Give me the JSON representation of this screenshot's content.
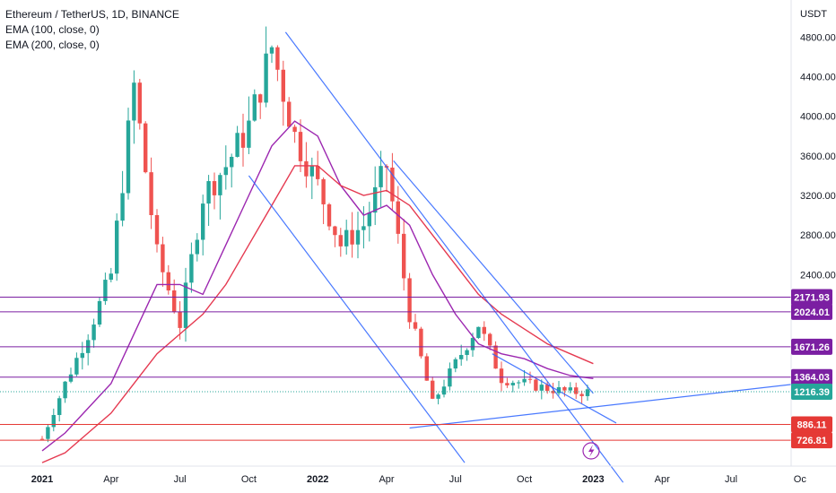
{
  "legend": {
    "symbol": "Ethereum / TetherUS, 1D, BINANCE",
    "ema100": "EMA (100, close, 0)",
    "ema200": "EMA (200, close, 0)"
  },
  "price_axis": {
    "currency": "USDT",
    "ticks": [
      "4800.00",
      "4400.00",
      "4000.00",
      "3600.00",
      "3200.00",
      "2800.00",
      "2400.00"
    ]
  },
  "time_axis": {
    "ticks": [
      "2021",
      "Apr",
      "Jul",
      "Oct",
      "2022",
      "Apr",
      "Jul",
      "Oct",
      "2023",
      "Apr",
      "Jul",
      "Oc"
    ]
  },
  "levels": [
    {
      "value": 2171.93,
      "label": "2171.93",
      "color": "#7b1fa2"
    },
    {
      "value": 2024.01,
      "label": "2024.01",
      "color": "#7b1fa2"
    },
    {
      "value": 1671.26,
      "label": "1671.26",
      "color": "#7b1fa2"
    },
    {
      "value": 1364.03,
      "label": "1364.03",
      "color": "#7b1fa2"
    },
    {
      "value": 1216.39,
      "label": "1216.39",
      "color": "#26a69a"
    },
    {
      "value": 886.11,
      "label": "886.11",
      "color": "#e53935"
    },
    {
      "value": 726.81,
      "label": "726.81",
      "color": "#e53935"
    }
  ],
  "colors": {
    "up": "#26a69a",
    "down": "#ef5350",
    "ema100": "#9c27b0",
    "ema200": "#e53950",
    "trendline": "#2962ff",
    "event_marker": "#9c27b0"
  },
  "chart_data": {
    "type": "line",
    "title": "Ethereum / TetherUS, 1D, BINANCE",
    "xlabel": "",
    "ylabel": "USDT",
    "x": [
      "2021-01",
      "2021-02",
      "2021-03",
      "2021-04",
      "2021-05",
      "2021-06",
      "2021-07",
      "2021-08",
      "2021-09",
      "2021-10",
      "2021-11",
      "2021-12",
      "2022-01",
      "2022-02",
      "2022-03",
      "2022-04",
      "2022-05",
      "2022-06",
      "2022-07",
      "2022-08",
      "2022-09",
      "2022-10",
      "2022-11",
      "2022-12",
      "2023-01"
    ],
    "series": [
      {
        "name": "ETH/USDT",
        "values": [
          740,
          1300,
          1800,
          2400,
          4300,
          2600,
          1900,
          3200,
          3500,
          3900,
          4700,
          3800,
          3300,
          2700,
          2900,
          3500,
          2000,
          1100,
          1500,
          1900,
          1350,
          1300,
          1250,
          1210,
          1216
        ]
      },
      {
        "name": "EMA (100, close, 0)",
        "values": [
          620,
          800,
          1050,
          1300,
          1800,
          2300,
          2300,
          2200,
          2700,
          3200,
          3700,
          3950,
          3800,
          3300,
          3000,
          3100,
          2900,
          2400,
          2000,
          1700,
          1600,
          1550,
          1450,
          1380,
          1350
        ]
      },
      {
        "name": "EMA (200, close, 0)",
        "values": [
          500,
          600,
          800,
          1000,
          1300,
          1600,
          1800,
          2000,
          2300,
          2700,
          3100,
          3500,
          3500,
          3300,
          3200,
          3250,
          3100,
          2800,
          2500,
          2200,
          2000,
          1850,
          1700,
          1600,
          1500
        ]
      }
    ],
    "ylim": [
      500,
      5100
    ],
    "grid": false,
    "levels": [
      2171.93,
      2024.01,
      1671.26,
      1364.03,
      1216.39,
      886.11,
      726.81
    ]
  }
}
